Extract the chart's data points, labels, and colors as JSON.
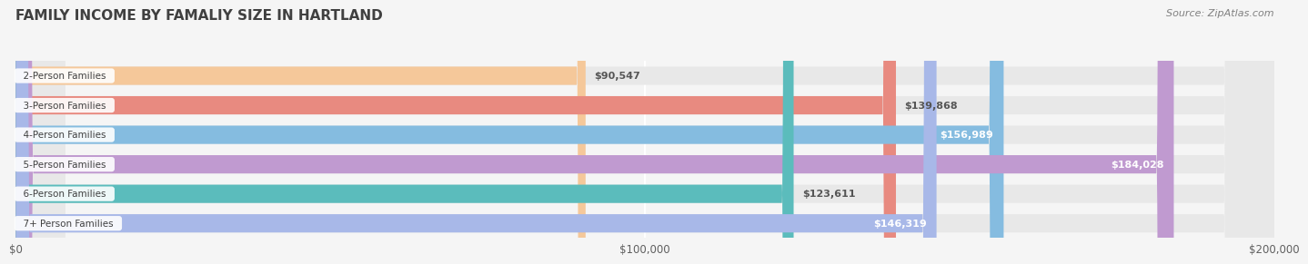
{
  "title": "FAMILY INCOME BY FAMALIY SIZE IN HARTLAND",
  "source": "Source: ZipAtlas.com",
  "categories": [
    "2-Person Families",
    "3-Person Families",
    "4-Person Families",
    "5-Person Families",
    "6-Person Families",
    "7+ Person Families"
  ],
  "values": [
    90547,
    139868,
    156989,
    184028,
    123611,
    146319
  ],
  "labels": [
    "$90,547",
    "$139,868",
    "$156,989",
    "$184,028",
    "$123,611",
    "$146,319"
  ],
  "bar_colors": [
    "#f5c89a",
    "#e88a80",
    "#85bce0",
    "#c09ad0",
    "#5bbcbc",
    "#a8b8e8"
  ],
  "bar_bg_color": "#e8e8e8",
  "xmax": 200000,
  "xticks": [
    0,
    100000,
    200000
  ],
  "xtick_labels": [
    "$0",
    "$100,000",
    "$200,000"
  ],
  "background_color": "#f5f5f5",
  "title_color": "#404040",
  "label_inside_threshold": 140000
}
